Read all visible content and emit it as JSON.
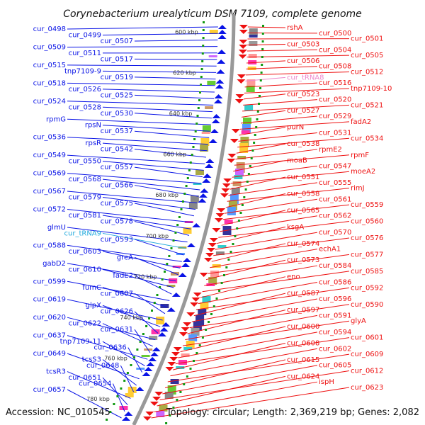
{
  "title": "Corynebacterium urealyticum DSM 7109, complete genome",
  "footer": {
    "accession": "Accession: NC_010545",
    "topology": "Topology: circular; Length: 2,369,219 bp; Genes: 2,082"
  },
  "colors": {
    "forward": "#0a14e6",
    "reverse": "#ee1111",
    "trna": "#22aadd",
    "trna_reverse": "#ee88cc",
    "backbone": "#999999",
    "ticks": "#119911"
  },
  "kbp_ticks": [
    "600 kbp",
    "620 kbp",
    "640 kbp",
    "660 kbp",
    "680 kbp",
    "700 kbp",
    "720 kbp",
    "740 kbp",
    "760 kbp",
    "780 kbp"
  ],
  "left_labels": [
    {
      "text": "cur_0498",
      "type": "gene"
    },
    {
      "text": "cur_0499",
      "type": "gene"
    },
    {
      "text": "cur_0507",
      "type": "gene"
    },
    {
      "text": "cur_0509",
      "type": "gene"
    },
    {
      "text": "cur_0511",
      "type": "gene"
    },
    {
      "text": "cur_0517",
      "type": "gene"
    },
    {
      "text": "cur_0515",
      "type": "gene"
    },
    {
      "text": "tnp7109-9",
      "type": "gene"
    },
    {
      "text": "cur_0519",
      "type": "gene"
    },
    {
      "text": "cur_0518",
      "type": "gene"
    },
    {
      "text": "cur_0526",
      "type": "gene"
    },
    {
      "text": "cur_0525",
      "type": "gene"
    },
    {
      "text": "cur_0524",
      "type": "gene"
    },
    {
      "text": "cur_0528",
      "type": "gene"
    },
    {
      "text": "cur_0530",
      "type": "gene"
    },
    {
      "text": "rpmG",
      "type": "gene"
    },
    {
      "text": "rpsN",
      "type": "gene"
    },
    {
      "text": "cur_0537",
      "type": "gene"
    },
    {
      "text": "cur_0536",
      "type": "gene"
    },
    {
      "text": "rpsR",
      "type": "gene"
    },
    {
      "text": "cur_0542",
      "type": "gene"
    },
    {
      "text": "cur_0549",
      "type": "gene"
    },
    {
      "text": "cur_0550",
      "type": "gene"
    },
    {
      "text": "cur_0557",
      "type": "gene"
    },
    {
      "text": "cur_0569",
      "type": "gene"
    },
    {
      "text": "cur_0568",
      "type": "gene"
    },
    {
      "text": "cur_0566",
      "type": "gene"
    },
    {
      "text": "cur_0567",
      "type": "gene"
    },
    {
      "text": "cur_0579",
      "type": "gene"
    },
    {
      "text": "cur_0575",
      "type": "gene"
    },
    {
      "text": "cur_0572",
      "type": "gene"
    },
    {
      "text": "cur_0581",
      "type": "gene"
    },
    {
      "text": "cur_0578",
      "type": "gene"
    },
    {
      "text": "glmU",
      "type": "gene"
    },
    {
      "text": "cur_tRNA9",
      "type": "trna"
    },
    {
      "text": "cur_0593",
      "type": "gene"
    },
    {
      "text": "cur_0588",
      "type": "gene"
    },
    {
      "text": "cur_0603",
      "type": "gene"
    },
    {
      "text": "greA",
      "type": "gene"
    },
    {
      "text": "gabD2",
      "type": "gene"
    },
    {
      "text": "cur_0610",
      "type": "gene"
    },
    {
      "text": "fadE2",
      "type": "gene"
    },
    {
      "text": "cur_0599",
      "type": "gene"
    },
    {
      "text": "fumC",
      "type": "gene"
    },
    {
      "text": "cur_0607",
      "type": "gene"
    },
    {
      "text": "cur_0619",
      "type": "gene"
    },
    {
      "text": "glpX",
      "type": "gene"
    },
    {
      "text": "cur_0626",
      "type": "gene"
    },
    {
      "text": "cur_0620",
      "type": "gene"
    },
    {
      "text": "cur_0622",
      "type": "gene"
    },
    {
      "text": "cur_0631",
      "type": "gene"
    },
    {
      "text": "cur_0637",
      "type": "gene"
    },
    {
      "text": "tnp7109-11",
      "type": "gene"
    },
    {
      "text": "cur_0636",
      "type": "gene"
    },
    {
      "text": "cur_0649",
      "type": "gene"
    },
    {
      "text": "tcsS3",
      "type": "gene"
    },
    {
      "text": "cur_0648",
      "type": "gene"
    },
    {
      "text": "tcsR3",
      "type": "gene"
    },
    {
      "text": "cur_0651",
      "type": "gene"
    },
    {
      "text": "cur_0654",
      "type": "gene"
    },
    {
      "text": "cur_0657",
      "type": "gene"
    }
  ],
  "right_labels": [
    {
      "text": "rshA",
      "type": "gene"
    },
    {
      "text": "cur_0500",
      "type": "gene"
    },
    {
      "text": "cur_0501",
      "type": "gene"
    },
    {
      "text": "cur_0503",
      "type": "gene"
    },
    {
      "text": "cur_0504",
      "type": "gene"
    },
    {
      "text": "cur_0505",
      "type": "gene"
    },
    {
      "text": "cur_0506",
      "type": "gene"
    },
    {
      "text": "cur_0508",
      "type": "gene"
    },
    {
      "text": "cur_0512",
      "type": "gene"
    },
    {
      "text": "cur_tRNA8",
      "type": "trna"
    },
    {
      "text": "cur_0516",
      "type": "gene"
    },
    {
      "text": "tnp7109-10",
      "type": "gene"
    },
    {
      "text": "cur_0523",
      "type": "gene"
    },
    {
      "text": "cur_0520",
      "type": "gene"
    },
    {
      "text": "cur_0521",
      "type": "gene"
    },
    {
      "text": "cur_0527",
      "type": "gene"
    },
    {
      "text": "cur_0529",
      "type": "gene"
    },
    {
      "text": "fadA2",
      "type": "gene"
    },
    {
      "text": "purN",
      "type": "gene"
    },
    {
      "text": "cur_0531",
      "type": "gene"
    },
    {
      "text": "cur_0534",
      "type": "gene"
    },
    {
      "text": "cur_0538",
      "type": "gene"
    },
    {
      "text": "rpmE2",
      "type": "gene"
    },
    {
      "text": "rpmF",
      "type": "gene"
    },
    {
      "text": "moaB",
      "type": "gene"
    },
    {
      "text": "cur_0547",
      "type": "gene"
    },
    {
      "text": "moeA2",
      "type": "gene"
    },
    {
      "text": "cur_0551",
      "type": "gene"
    },
    {
      "text": "cur_0555",
      "type": "gene"
    },
    {
      "text": "rimJ",
      "type": "gene"
    },
    {
      "text": "cur_0558",
      "type": "gene"
    },
    {
      "text": "cur_0561",
      "type": "gene"
    },
    {
      "text": "cur_0559",
      "type": "gene"
    },
    {
      "text": "cur_0565",
      "type": "gene"
    },
    {
      "text": "cur_0562",
      "type": "gene"
    },
    {
      "text": "cur_0560",
      "type": "gene"
    },
    {
      "text": "ksgA",
      "type": "gene"
    },
    {
      "text": "cur_0570",
      "type": "gene"
    },
    {
      "text": "cur_0576",
      "type": "gene"
    },
    {
      "text": "cur_0574",
      "type": "gene"
    },
    {
      "text": "echA1",
      "type": "gene"
    },
    {
      "text": "cur_0577",
      "type": "gene"
    },
    {
      "text": "cur_0573",
      "type": "gene"
    },
    {
      "text": "cur_0584",
      "type": "gene"
    },
    {
      "text": "cur_0585",
      "type": "gene"
    },
    {
      "text": "eno",
      "type": "gene"
    },
    {
      "text": "cur_0586",
      "type": "gene"
    },
    {
      "text": "cur_0592",
      "type": "gene"
    },
    {
      "text": "cur_0587",
      "type": "gene"
    },
    {
      "text": "cur_0596",
      "type": "gene"
    },
    {
      "text": "cur_0590",
      "type": "gene"
    },
    {
      "text": "cur_0597",
      "type": "gene"
    },
    {
      "text": "cur_0591",
      "type": "gene"
    },
    {
      "text": "glyA",
      "type": "gene"
    },
    {
      "text": "cur_0600",
      "type": "gene"
    },
    {
      "text": "cur_0594",
      "type": "gene"
    },
    {
      "text": "cur_0601",
      "type": "gene"
    },
    {
      "text": "cur_0608",
      "type": "gene"
    },
    {
      "text": "cur_0602",
      "type": "gene"
    },
    {
      "text": "cur_0609",
      "type": "gene"
    },
    {
      "text": "cur_0615",
      "type": "gene"
    },
    {
      "text": "cur_0605",
      "type": "gene"
    },
    {
      "text": "cur_0612",
      "type": "gene"
    },
    {
      "text": "cur_0624",
      "type": "gene"
    },
    {
      "text": "ispH",
      "type": "gene"
    },
    {
      "text": "cur_0623",
      "type": "gene"
    }
  ]
}
